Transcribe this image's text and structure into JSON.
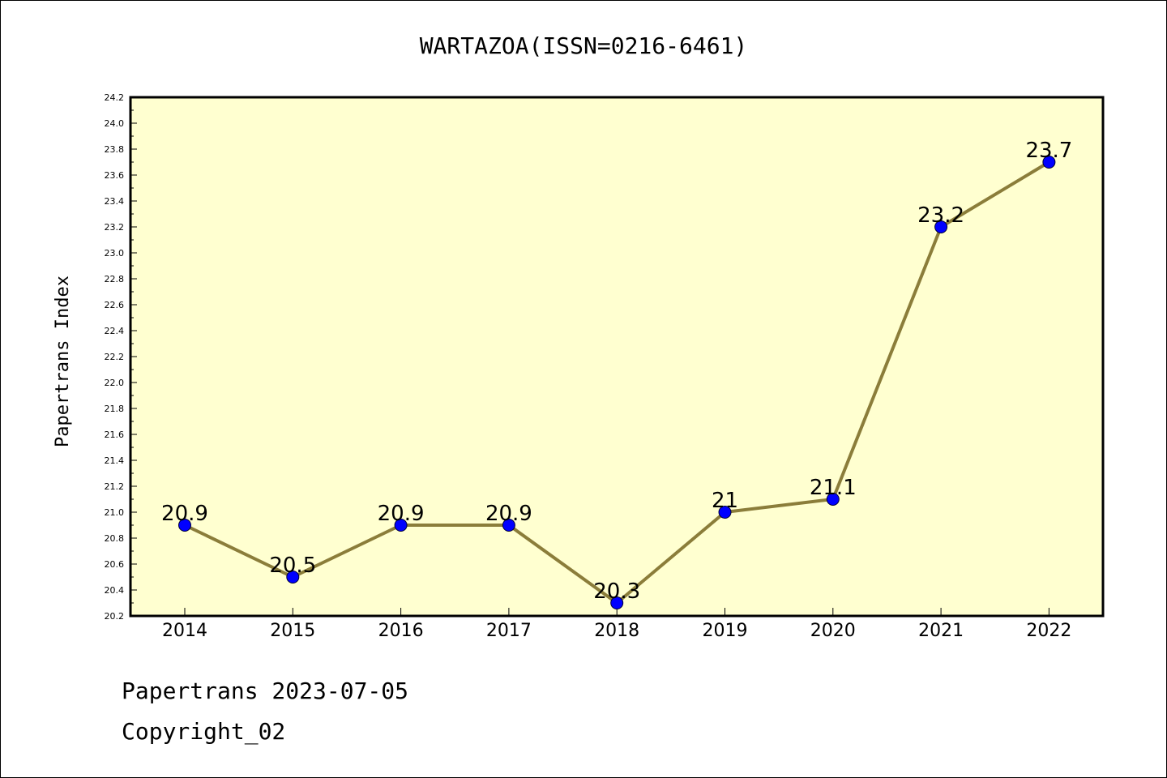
{
  "chart_data": {
    "type": "line",
    "title": "WARTAZOA(ISSN=0216-6461)",
    "xlabel": "",
    "ylabel": "Papertrans Index",
    "categories": [
      "2014",
      "2015",
      "2016",
      "2017",
      "2018",
      "2019",
      "2020",
      "2021",
      "2022"
    ],
    "values": [
      20.9,
      20.5,
      20.9,
      20.9,
      20.3,
      21.0,
      21.1,
      23.2,
      23.7
    ],
    "data_labels": [
      "20.9",
      "20.5",
      "20.9",
      "20.9",
      "20.3",
      "21",
      "21.1",
      "23.2",
      "23.7"
    ],
    "ylim": [
      20.2,
      24.2
    ],
    "yticks": [
      "20.2",
      "20.4",
      "20.6",
      "20.8",
      "21.0",
      "21.2",
      "21.4",
      "21.6",
      "21.8",
      "22.0",
      "22.2",
      "22.4",
      "22.6",
      "22.8",
      "23.0",
      "23.2",
      "23.4",
      "23.6",
      "23.8",
      "24.0",
      "24.2"
    ],
    "grid": false,
    "colors": {
      "plot_background": "#ffffd0",
      "line": "#8b7d3a",
      "marker": "#0000ff"
    }
  },
  "footer": {
    "line1": "Papertrans 2023-07-05",
    "line2": "Copyright_02"
  }
}
